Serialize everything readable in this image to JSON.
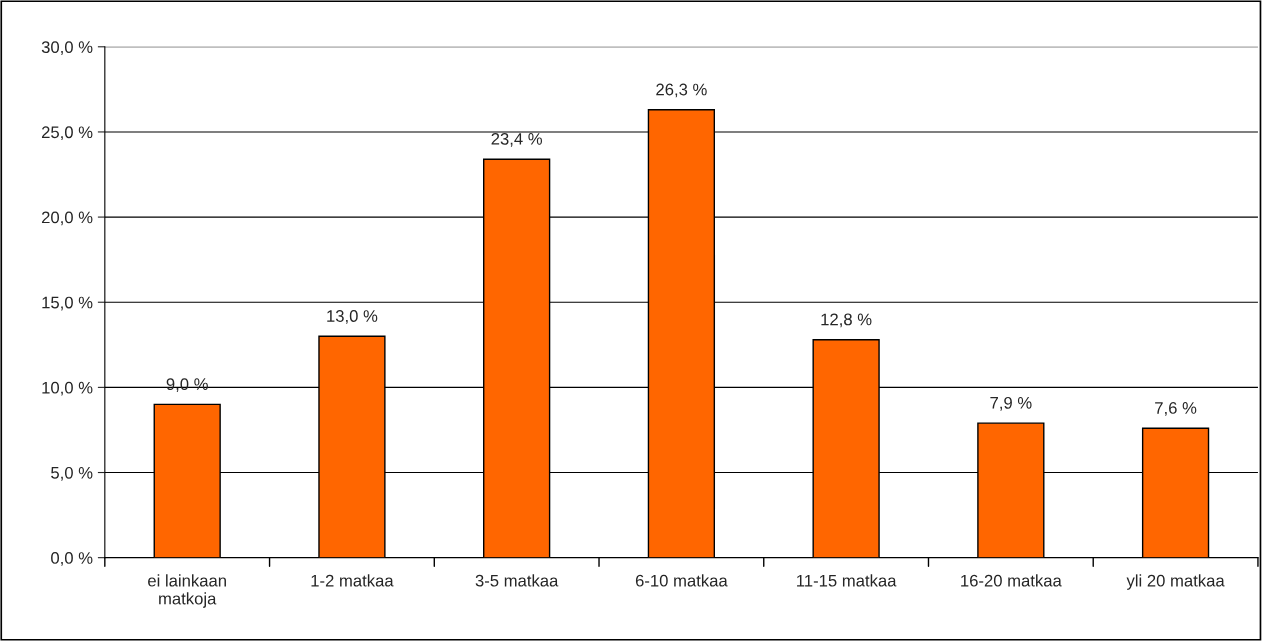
{
  "chart_data": {
    "type": "bar",
    "categories": [
      "ei lainkaan\nmatkoja",
      "1-2 matkaa",
      "3-5 matkaa",
      "6-10 matkaa",
      "11-15 matkaa",
      "16-20 matkaa",
      "yli 20 matkaa"
    ],
    "values": [
      9.0,
      13.0,
      23.4,
      26.3,
      12.8,
      7.9,
      7.6
    ],
    "value_labels": [
      "9,0 %",
      "13,0 %",
      "23,4 %",
      "26,3 %",
      "12,8 %",
      "7,9 %",
      "7,6 %"
    ],
    "color": "#ff6600",
    "ylim": [
      0,
      30
    ],
    "yticks": [
      {
        "value": 0,
        "label": "0,0 %"
      },
      {
        "value": 5,
        "label": "5,0 %"
      },
      {
        "value": 10,
        "label": "10,0 %"
      },
      {
        "value": 15,
        "label": "15,0 %"
      },
      {
        "value": 20,
        "label": "20,0 %"
      },
      {
        "value": 25,
        "label": "25,0 %"
      },
      {
        "value": 30,
        "label": "30,0 %"
      }
    ],
    "grid": "y",
    "legend": false
  }
}
